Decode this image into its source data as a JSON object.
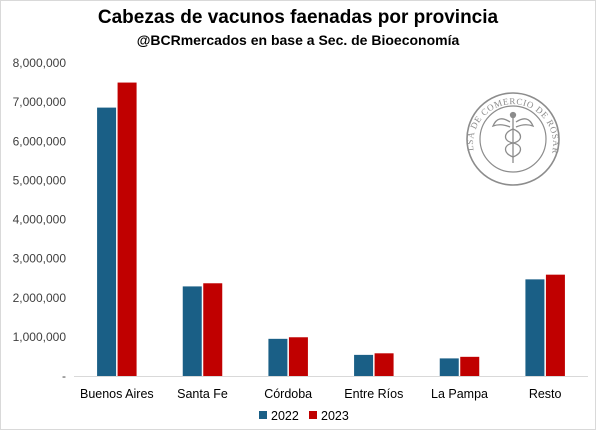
{
  "chart_data": {
    "type": "bar",
    "title": "Cabezas de vacunos faenadas por provincia",
    "subtitle": "@BCRmercados en base a Sec. de Bioeconomía",
    "categories": [
      "Buenos Aires",
      "Santa Fe",
      "Córdoba",
      "Entre Ríos",
      "La Pampa",
      "Resto"
    ],
    "series": [
      {
        "name": "2022",
        "color": "#1a5f86",
        "values": [
          6860000,
          2290000,
          950000,
          540000,
          450000,
          2470000
        ]
      },
      {
        "name": "2023",
        "color": "#c00000",
        "values": [
          7500000,
          2370000,
          990000,
          580000,
          490000,
          2590000
        ]
      }
    ],
    "ylim": [
      0,
      8000000
    ],
    "yticks": [
      0,
      1000000,
      2000000,
      3000000,
      4000000,
      5000000,
      6000000,
      7000000,
      8000000
    ],
    "ytick_labels": [
      "-",
      "1,000,000",
      "2,000,000",
      "3,000,000",
      "4,000,000",
      "5,000,000",
      "6,000,000",
      "7,000,000",
      "8,000,000"
    ],
    "gridlines": false,
    "legend_position": "bottom-center",
    "watermark": {
      "text": "BOLSA DE COMERCIO DE ROSARIO",
      "icon": "caduceus-icon",
      "color": "#8c8c8c"
    }
  }
}
